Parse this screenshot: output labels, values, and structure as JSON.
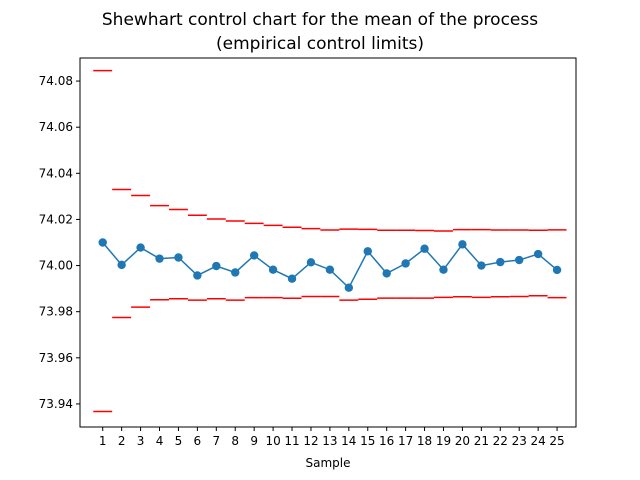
{
  "chart_data": {
    "type": "line",
    "title_line1": "Shewhart control chart for the mean of the process",
    "title_line2": "(empirical control limits)",
    "xlabel": "Sample",
    "ylabel": "",
    "x": [
      1,
      2,
      3,
      4,
      5,
      6,
      7,
      8,
      9,
      10,
      11,
      12,
      13,
      14,
      15,
      16,
      17,
      18,
      19,
      20,
      21,
      22,
      23,
      24,
      25
    ],
    "x_tick_labels": [
      "1",
      "2",
      "3",
      "4",
      "5",
      "6",
      "7",
      "8",
      "9",
      "10",
      "11",
      "12",
      "13",
      "14",
      "15",
      "16",
      "17",
      "18",
      "19",
      "20",
      "21",
      "22",
      "23",
      "24",
      "25"
    ],
    "xlim": [
      -0.2,
      26.0
    ],
    "ylim": [
      73.93,
      74.09
    ],
    "y_ticks": [
      73.94,
      73.96,
      73.98,
      74.0,
      74.02,
      74.04,
      74.06,
      74.08
    ],
    "y_tick_labels": [
      "73.94",
      "73.96",
      "73.98",
      "74.00",
      "74.02",
      "74.04",
      "74.06",
      "74.08"
    ],
    "series": [
      {
        "kind": "line-with-markers",
        "color": "#1f77b4",
        "values": [
          74.01,
          74.0003,
          74.0078,
          74.003,
          74.0035,
          73.9957,
          73.9998,
          73.997,
          74.0044,
          73.9982,
          73.9943,
          74.0014,
          73.9982,
          73.9904,
          74.0062,
          73.9966,
          74.0009,
          74.0073,
          73.9982,
          74.0092,
          74.0,
          74.0015,
          74.0024,
          74.005,
          73.9981
        ]
      },
      {
        "kind": "step-limit",
        "color": "#ff0000",
        "values": [
          74.0845,
          74.033,
          74.0304,
          74.026,
          74.0243,
          74.0218,
          74.0202,
          74.0193,
          74.0183,
          74.0174,
          74.0166,
          74.016,
          74.0154,
          74.0158,
          74.0157,
          74.0153,
          74.0153,
          74.0152,
          74.015,
          74.0156,
          74.0156,
          74.0154,
          74.0154,
          74.0153,
          74.0155
        ]
      },
      {
        "kind": "step-limit",
        "color": "#ff0000",
        "values": [
          73.9367,
          73.9775,
          73.982,
          73.9852,
          73.9856,
          73.985,
          73.9856,
          73.985,
          73.9861,
          73.9861,
          73.9858,
          73.9866,
          73.9866,
          73.985,
          73.9854,
          73.9859,
          73.9859,
          73.9859,
          73.9862,
          73.9865,
          73.9862,
          73.9865,
          73.9866,
          73.9869,
          73.9861
        ]
      }
    ],
    "grid": false,
    "legend": "none"
  }
}
